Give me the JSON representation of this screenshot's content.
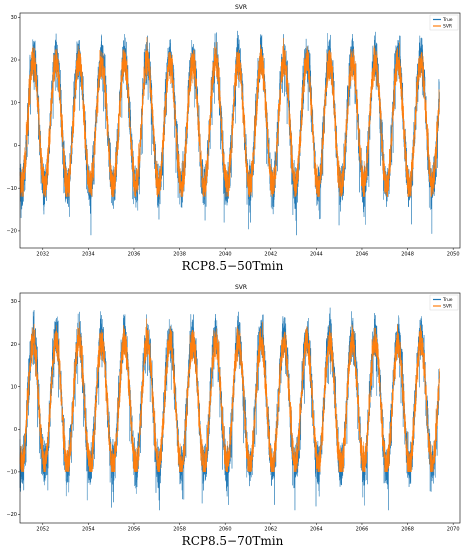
{
  "chart_data": [
    {
      "type": "line",
      "title": "SVR",
      "caption": "RCP8.5−50Tmin",
      "xlabel": "",
      "ylabel": "",
      "x_ticks": [
        "2032",
        "2034",
        "2036",
        "2038",
        "2040",
        "2042",
        "2044",
        "2046",
        "2048",
        "2050"
      ],
      "xlim": [
        2031.0,
        2050.3
      ],
      "data_span": [
        2031.0,
        2049.4
      ],
      "y_ticks": [
        "30",
        "20",
        "10",
        "0",
        "−10",
        "−20"
      ],
      "ylim": [
        -24,
        31
      ],
      "legend": "top-right",
      "grid": false,
      "seasonal": {
        "mean": 5.5,
        "amplitude": 15.5,
        "peak_phase": 0.58,
        "true_noise": 4.5,
        "svr_noise": 3.5
      },
      "series": [
        {
          "name": "True",
          "color": "#1f77b4",
          "range_estimate": [
            -21,
            29
          ]
        },
        {
          "name": "SVR",
          "color": "#ff7f0e",
          "range_estimate": [
            -12,
            26
          ]
        }
      ]
    },
    {
      "type": "line",
      "title": "SVR",
      "caption": "RCP8.5−70Tmin",
      "xlabel": "",
      "ylabel": "",
      "x_ticks": [
        "2052",
        "2054",
        "2056",
        "2058",
        "2060",
        "2062",
        "2064",
        "2066",
        "2068",
        "2070"
      ],
      "xlim": [
        2051.0,
        2070.3
      ],
      "data_span": [
        2051.0,
        2069.4
      ],
      "y_ticks": [
        "30",
        "20",
        "10",
        "0",
        "−10",
        "−20"
      ],
      "ylim": [
        -22,
        32
      ],
      "legend": "top-right",
      "grid": false,
      "seasonal": {
        "mean": 6.5,
        "amplitude": 15.5,
        "peak_phase": 0.58,
        "true_noise": 4.5,
        "svr_noise": 3.5
      },
      "series": [
        {
          "name": "True",
          "color": "#1f77b4",
          "range_estimate": [
            -19,
            30
          ]
        },
        {
          "name": "SVR",
          "color": "#ff7f0e",
          "range_estimate": [
            -10,
            28
          ]
        }
      ]
    }
  ]
}
